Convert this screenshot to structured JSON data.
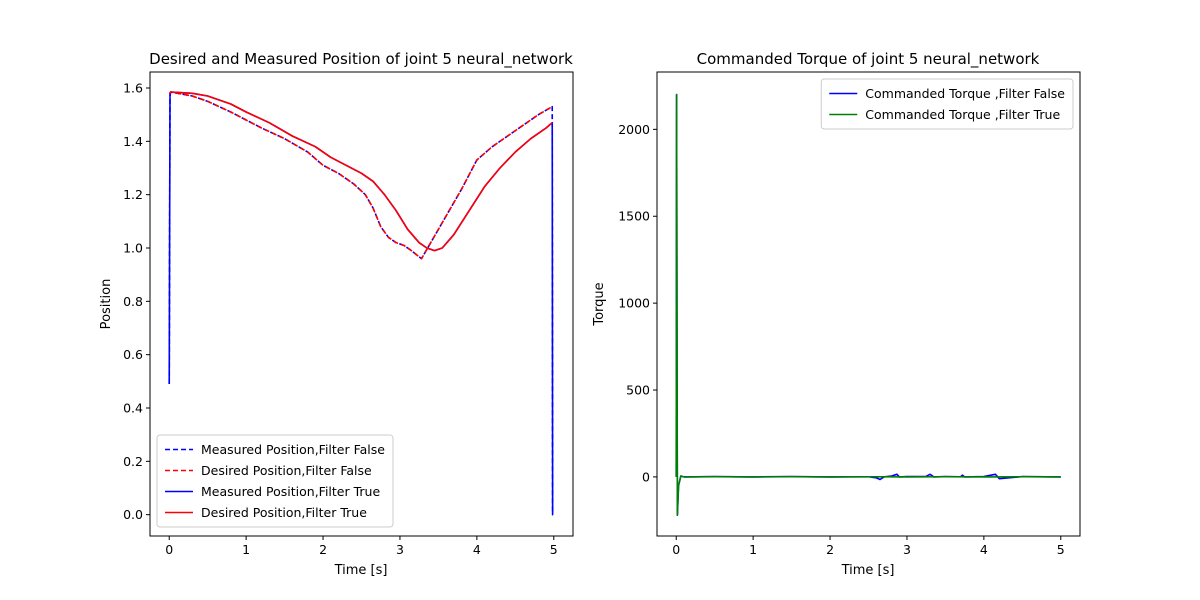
{
  "chart_data": [
    {
      "type": "line",
      "title": "Desired and Measured Position of joint 5 neural_network",
      "xlabel": "Time [s]",
      "ylabel": "Position",
      "xlim": [
        -0.25,
        5.25
      ],
      "ylim": [
        -0.08,
        1.66
      ],
      "xticks": [
        0,
        1,
        2,
        3,
        4,
        5
      ],
      "yticks": [
        0.0,
        0.2,
        0.4,
        0.6,
        0.8,
        1.0,
        1.2,
        1.4,
        1.6
      ],
      "grid": false,
      "legend_position": "lower-left",
      "series": [
        {
          "name": "Measured Position,Filter False",
          "color": "#0000ff",
          "style": "dashed",
          "x": [
            0,
            0.01,
            0.02,
            0.3,
            0.5,
            0.8,
            1.0,
            1.2,
            1.5,
            1.8,
            2.0,
            2.2,
            2.4,
            2.55,
            2.65,
            2.75,
            2.85,
            2.95,
            3.05,
            3.15,
            3.28,
            3.4,
            3.6,
            3.8,
            4.0,
            4.2,
            4.4,
            4.6,
            4.8,
            4.98,
            4.985,
            4.99
          ],
          "y": [
            0.49,
            1.57,
            1.585,
            1.57,
            1.55,
            1.51,
            1.48,
            1.45,
            1.41,
            1.36,
            1.31,
            1.28,
            1.24,
            1.2,
            1.15,
            1.08,
            1.04,
            1.02,
            1.01,
            0.99,
            0.96,
            1.02,
            1.12,
            1.22,
            1.33,
            1.38,
            1.42,
            1.46,
            1.5,
            1.53,
            0.0,
            0.0
          ]
        },
        {
          "name": "Desired Position,Filter False",
          "color": "#ff0000",
          "style": "dashed",
          "x": [
            0,
            0.01,
            0.02,
            0.3,
            0.5,
            0.8,
            1.0,
            1.2,
            1.5,
            1.8,
            2.0,
            2.2,
            2.4,
            2.55,
            2.65,
            2.75,
            2.85,
            2.95,
            3.05,
            3.15,
            3.28,
            3.4,
            3.6,
            3.8,
            4.0,
            4.2,
            4.4,
            4.6,
            4.8,
            4.98
          ],
          "y": [
            1.58,
            1.58,
            1.585,
            1.57,
            1.55,
            1.51,
            1.48,
            1.45,
            1.41,
            1.36,
            1.31,
            1.28,
            1.24,
            1.2,
            1.15,
            1.08,
            1.04,
            1.02,
            1.01,
            0.99,
            0.96,
            1.02,
            1.12,
            1.22,
            1.33,
            1.38,
            1.42,
            1.46,
            1.5,
            1.53
          ]
        },
        {
          "name": "Measured Position,Filter True",
          "color": "#0000ff",
          "style": "solid",
          "x": [
            0,
            0.01,
            0.02,
            0.3,
            0.5,
            0.8,
            1.0,
            1.3,
            1.6,
            1.9,
            2.1,
            2.3,
            2.5,
            2.65,
            2.8,
            2.95,
            3.1,
            3.25,
            3.35,
            3.45,
            3.55,
            3.7,
            3.9,
            4.1,
            4.3,
            4.5,
            4.7,
            4.9,
            4.98,
            4.985,
            4.99
          ],
          "y": [
            0.49,
            1.58,
            1.585,
            1.58,
            1.57,
            1.54,
            1.51,
            1.47,
            1.42,
            1.38,
            1.34,
            1.31,
            1.28,
            1.25,
            1.2,
            1.14,
            1.07,
            1.02,
            1.0,
            0.99,
            1.0,
            1.05,
            1.14,
            1.23,
            1.3,
            1.36,
            1.41,
            1.45,
            1.47,
            0.0,
            0.0
          ]
        },
        {
          "name": "Desired Position,Filter True",
          "color": "#ff0000",
          "style": "solid",
          "x": [
            0,
            0.01,
            0.02,
            0.3,
            0.5,
            0.8,
            1.0,
            1.3,
            1.6,
            1.9,
            2.1,
            2.3,
            2.5,
            2.65,
            2.8,
            2.95,
            3.1,
            3.25,
            3.35,
            3.45,
            3.55,
            3.7,
            3.9,
            4.1,
            4.3,
            4.5,
            4.7,
            4.9,
            4.98
          ],
          "y": [
            1.58,
            1.58,
            1.585,
            1.58,
            1.57,
            1.54,
            1.51,
            1.47,
            1.42,
            1.38,
            1.34,
            1.31,
            1.28,
            1.25,
            1.2,
            1.14,
            1.07,
            1.02,
            1.0,
            0.99,
            1.0,
            1.05,
            1.14,
            1.23,
            1.3,
            1.36,
            1.41,
            1.45,
            1.47
          ]
        }
      ]
    },
    {
      "type": "line",
      "title": "Commanded Torque of joint 5 neural_network",
      "xlabel": "Time [s]",
      "ylabel": "Torque",
      "xlim": [
        -0.25,
        5.25
      ],
      "ylim": [
        -340,
        2330
      ],
      "xticks": [
        0,
        1,
        2,
        3,
        4,
        5
      ],
      "yticks": [
        0,
        500,
        1000,
        1500,
        2000
      ],
      "grid": false,
      "legend_position": "upper-right",
      "series": [
        {
          "name": "Commanded Torque ,Filter False",
          "color": "#0000ff",
          "style": "solid",
          "x": [
            0,
            0.005,
            0.01,
            0.015,
            0.03,
            0.06,
            0.1,
            0.5,
            1.0,
            1.5,
            2.0,
            2.5,
            2.6,
            2.65,
            2.7,
            2.8,
            2.87,
            2.9,
            3.0,
            3.25,
            3.3,
            3.35,
            3.5,
            3.7,
            3.72,
            3.75,
            4.0,
            4.15,
            4.2,
            4.5,
            5.0
          ],
          "y": [
            0,
            2200,
            800,
            -220,
            -50,
            5,
            0,
            2,
            0,
            2,
            0,
            1,
            -5,
            -15,
            0,
            5,
            15,
            0,
            2,
            3,
            15,
            0,
            2,
            1,
            10,
            0,
            2,
            15,
            -10,
            2,
            0
          ]
        },
        {
          "name": "Commanded Torque ,Filter True",
          "color": "#008000",
          "style": "solid",
          "x": [
            0,
            0.005,
            0.01,
            0.015,
            0.03,
            0.06,
            0.1,
            0.5,
            1.0,
            1.5,
            2.0,
            2.5,
            3.0,
            3.5,
            4.0,
            4.5,
            5.0
          ],
          "y": [
            0,
            2200,
            800,
            -220,
            -50,
            5,
            0,
            1,
            0,
            1,
            0,
            1,
            0,
            1,
            0,
            1,
            0
          ]
        }
      ]
    }
  ]
}
